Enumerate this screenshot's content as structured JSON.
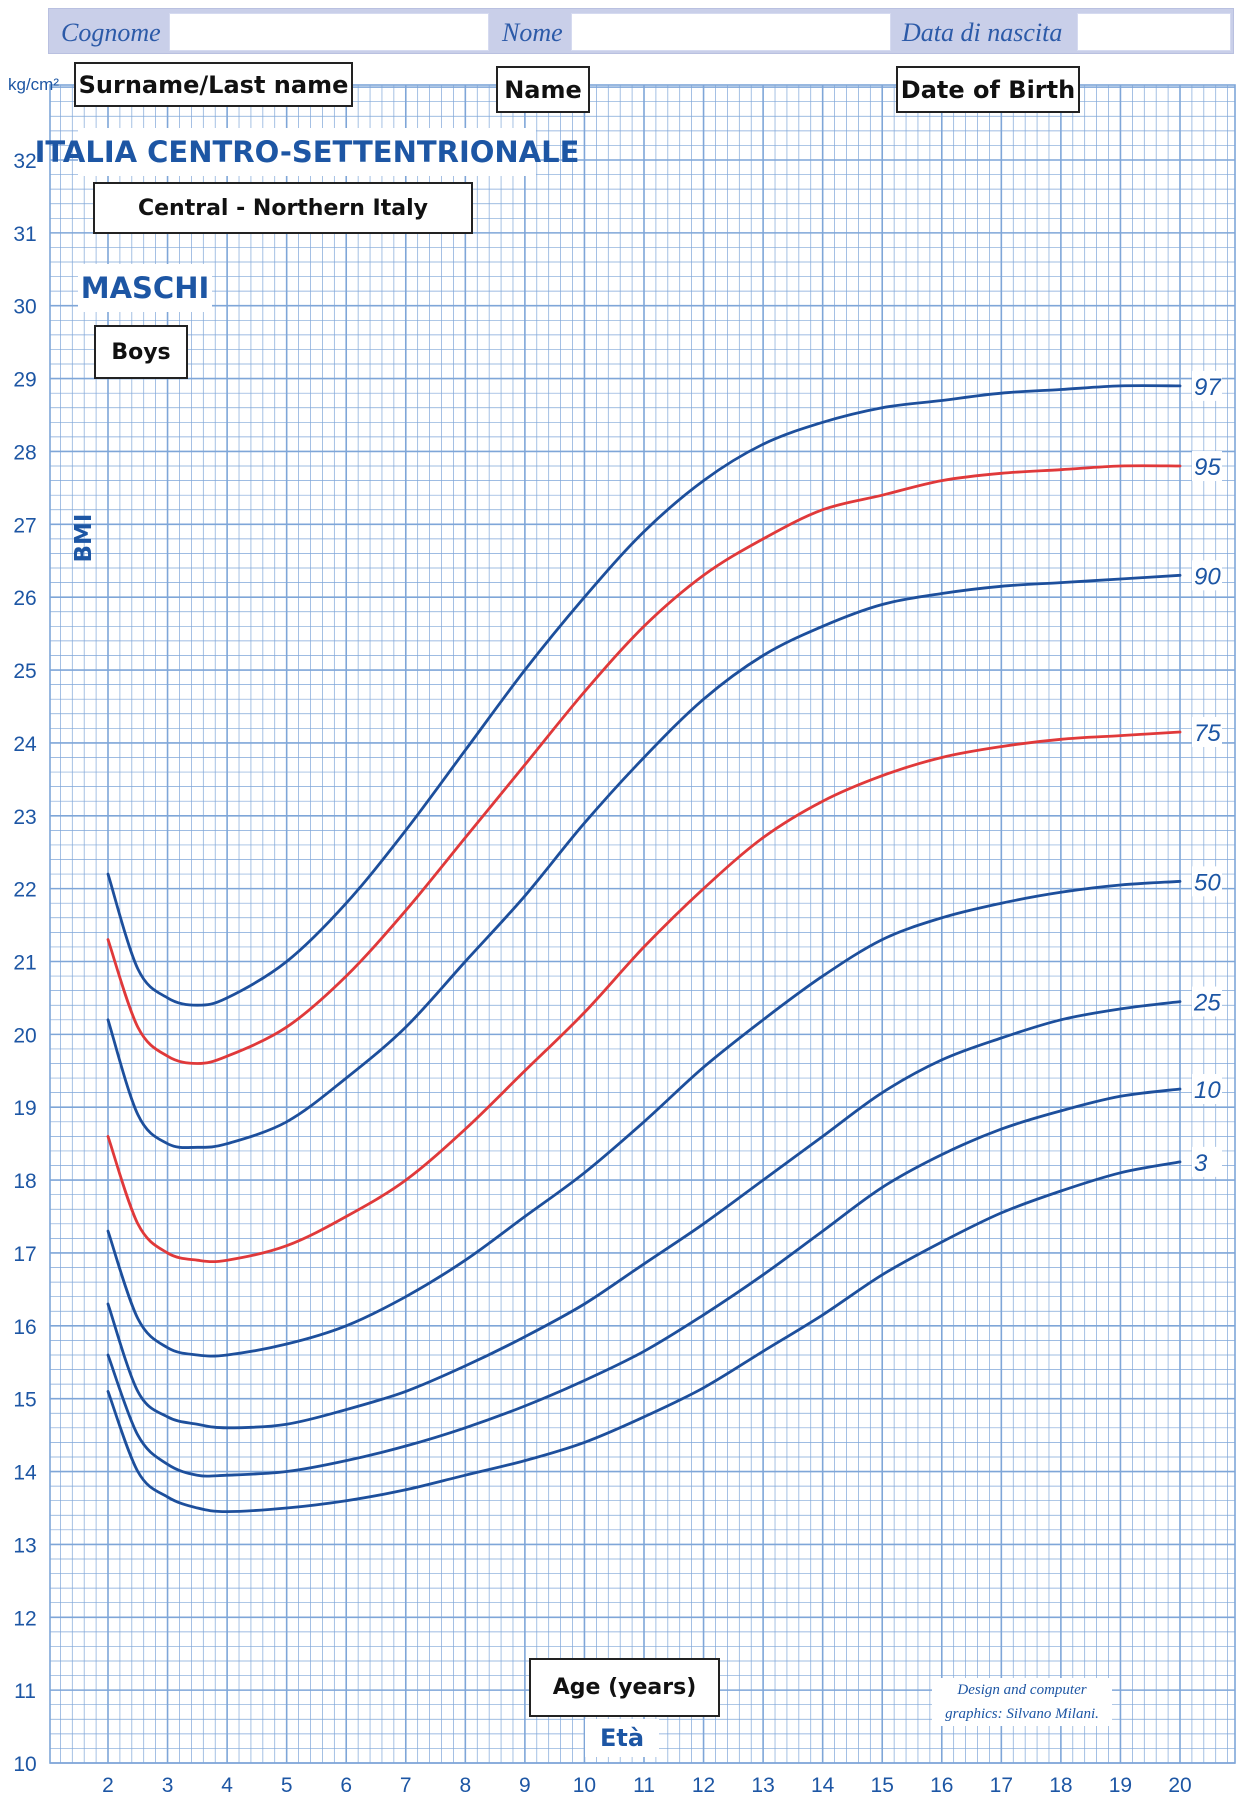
{
  "header": {
    "surname_label": "Cognome",
    "name_label": "Nome",
    "dob_label": "Data di nascita"
  },
  "translations": {
    "surname": "Surname/Last name",
    "name": "Name",
    "dob": "Date of Birth",
    "region_en": "Central - Northern Italy",
    "sex_en": "Boys",
    "xlabel_en": "Age (years)"
  },
  "region": "ITALIA CENTRO-SETTENTRIONALE",
  "sex": "MASCHI",
  "credit_line1": "Design and computer",
  "credit_line2": "graphics: Silvano Milani.",
  "colors": {
    "grid": "#7fa6d8",
    "blue_curve": "#1d4f9c",
    "red_curve": "#e0393a",
    "label": "#1d56a4",
    "header_bg": "#c9cfe9"
  },
  "chart_data": {
    "type": "line",
    "title": "ITALIA CENTRO-SETTENTRIONALE",
    "subtitle": "MASCHI",
    "xlabel": "Età",
    "ylabel": "BMI",
    "yunit": "kg/cm²",
    "xlim": [
      2,
      20
    ],
    "ylim": [
      10,
      32
    ],
    "x_ticks": [
      2,
      3,
      4,
      5,
      6,
      7,
      8,
      9,
      10,
      11,
      12,
      13,
      14,
      15,
      16,
      17,
      18,
      19,
      20
    ],
    "y_ticks": [
      10,
      11,
      12,
      13,
      14,
      15,
      16,
      17,
      18,
      19,
      20,
      21,
      22,
      23,
      24,
      25,
      26,
      27,
      28,
      29,
      30,
      31,
      32
    ],
    "grid": true,
    "series": [
      {
        "name": "97",
        "color": "#1d4f9c",
        "x": [
          2,
          2.5,
          3,
          3.5,
          4,
          5,
          6,
          7,
          8,
          9,
          10,
          11,
          12,
          13,
          14,
          15,
          16,
          17,
          18,
          19,
          20
        ],
        "y": [
          22.2,
          20.9,
          20.5,
          20.4,
          20.5,
          21.0,
          21.8,
          22.8,
          23.9,
          25.0,
          26.0,
          26.9,
          27.6,
          28.1,
          28.4,
          28.6,
          28.7,
          28.8,
          28.85,
          28.9,
          28.9
        ]
      },
      {
        "name": "95",
        "color": "#e0393a",
        "x": [
          2,
          2.5,
          3,
          3.5,
          4,
          5,
          6,
          7,
          8,
          9,
          10,
          11,
          12,
          13,
          14,
          15,
          16,
          17,
          18,
          19,
          20
        ],
        "y": [
          21.3,
          20.1,
          19.7,
          19.6,
          19.7,
          20.1,
          20.8,
          21.7,
          22.7,
          23.7,
          24.7,
          25.6,
          26.3,
          26.8,
          27.2,
          27.4,
          27.6,
          27.7,
          27.75,
          27.8,
          27.8
        ]
      },
      {
        "name": "90",
        "color": "#1d4f9c",
        "x": [
          2,
          2.5,
          3,
          3.5,
          4,
          5,
          6,
          7,
          8,
          9,
          10,
          11,
          12,
          13,
          14,
          15,
          16,
          17,
          18,
          19,
          20
        ],
        "y": [
          20.2,
          18.9,
          18.5,
          18.45,
          18.5,
          18.8,
          19.4,
          20.1,
          21.0,
          21.9,
          22.9,
          23.8,
          24.6,
          25.2,
          25.6,
          25.9,
          26.05,
          26.15,
          26.2,
          26.25,
          26.3
        ]
      },
      {
        "name": "75",
        "color": "#e0393a",
        "x": [
          2,
          2.5,
          3,
          3.5,
          4,
          5,
          6,
          7,
          8,
          9,
          10,
          11,
          12,
          13,
          14,
          15,
          16,
          17,
          18,
          19,
          20
        ],
        "y": [
          18.6,
          17.4,
          17.0,
          16.9,
          16.9,
          17.1,
          17.5,
          18.0,
          18.7,
          19.5,
          20.3,
          21.2,
          22.0,
          22.7,
          23.2,
          23.55,
          23.8,
          23.95,
          24.05,
          24.1,
          24.15
        ]
      },
      {
        "name": "50",
        "color": "#1d4f9c",
        "x": [
          2,
          2.5,
          3,
          3.5,
          4,
          5,
          6,
          7,
          8,
          9,
          10,
          11,
          12,
          13,
          14,
          15,
          16,
          17,
          18,
          19,
          20
        ],
        "y": [
          17.3,
          16.1,
          15.7,
          15.6,
          15.6,
          15.75,
          16.0,
          16.4,
          16.9,
          17.5,
          18.1,
          18.8,
          19.55,
          20.2,
          20.8,
          21.3,
          21.6,
          21.8,
          21.95,
          22.05,
          22.1
        ]
      },
      {
        "name": "25",
        "color": "#1d4f9c",
        "x": [
          2,
          2.5,
          3,
          3.5,
          4,
          5,
          6,
          7,
          8,
          9,
          10,
          11,
          12,
          13,
          14,
          15,
          16,
          17,
          18,
          19,
          20
        ],
        "y": [
          16.3,
          15.1,
          14.75,
          14.65,
          14.6,
          14.65,
          14.85,
          15.1,
          15.45,
          15.85,
          16.3,
          16.85,
          17.4,
          18.0,
          18.6,
          19.2,
          19.65,
          19.95,
          20.2,
          20.35,
          20.45
        ]
      },
      {
        "name": "10",
        "color": "#1d4f9c",
        "x": [
          2,
          2.5,
          3,
          3.5,
          4,
          5,
          6,
          7,
          8,
          9,
          10,
          11,
          12,
          13,
          14,
          15,
          16,
          17,
          18,
          19,
          20
        ],
        "y": [
          15.6,
          14.5,
          14.1,
          13.95,
          13.95,
          14.0,
          14.15,
          14.35,
          14.6,
          14.9,
          15.25,
          15.65,
          16.15,
          16.7,
          17.3,
          17.9,
          18.35,
          18.7,
          18.95,
          19.15,
          19.25
        ]
      },
      {
        "name": "3",
        "color": "#1d4f9c",
        "x": [
          2,
          2.5,
          3,
          3.5,
          4,
          5,
          6,
          7,
          8,
          9,
          10,
          11,
          12,
          13,
          14,
          15,
          16,
          17,
          18,
          19,
          20
        ],
        "y": [
          15.1,
          14.0,
          13.65,
          13.5,
          13.45,
          13.5,
          13.6,
          13.75,
          13.95,
          14.15,
          14.4,
          14.75,
          15.15,
          15.65,
          16.15,
          16.7,
          17.15,
          17.55,
          17.85,
          18.1,
          18.25
        ]
      }
    ]
  }
}
